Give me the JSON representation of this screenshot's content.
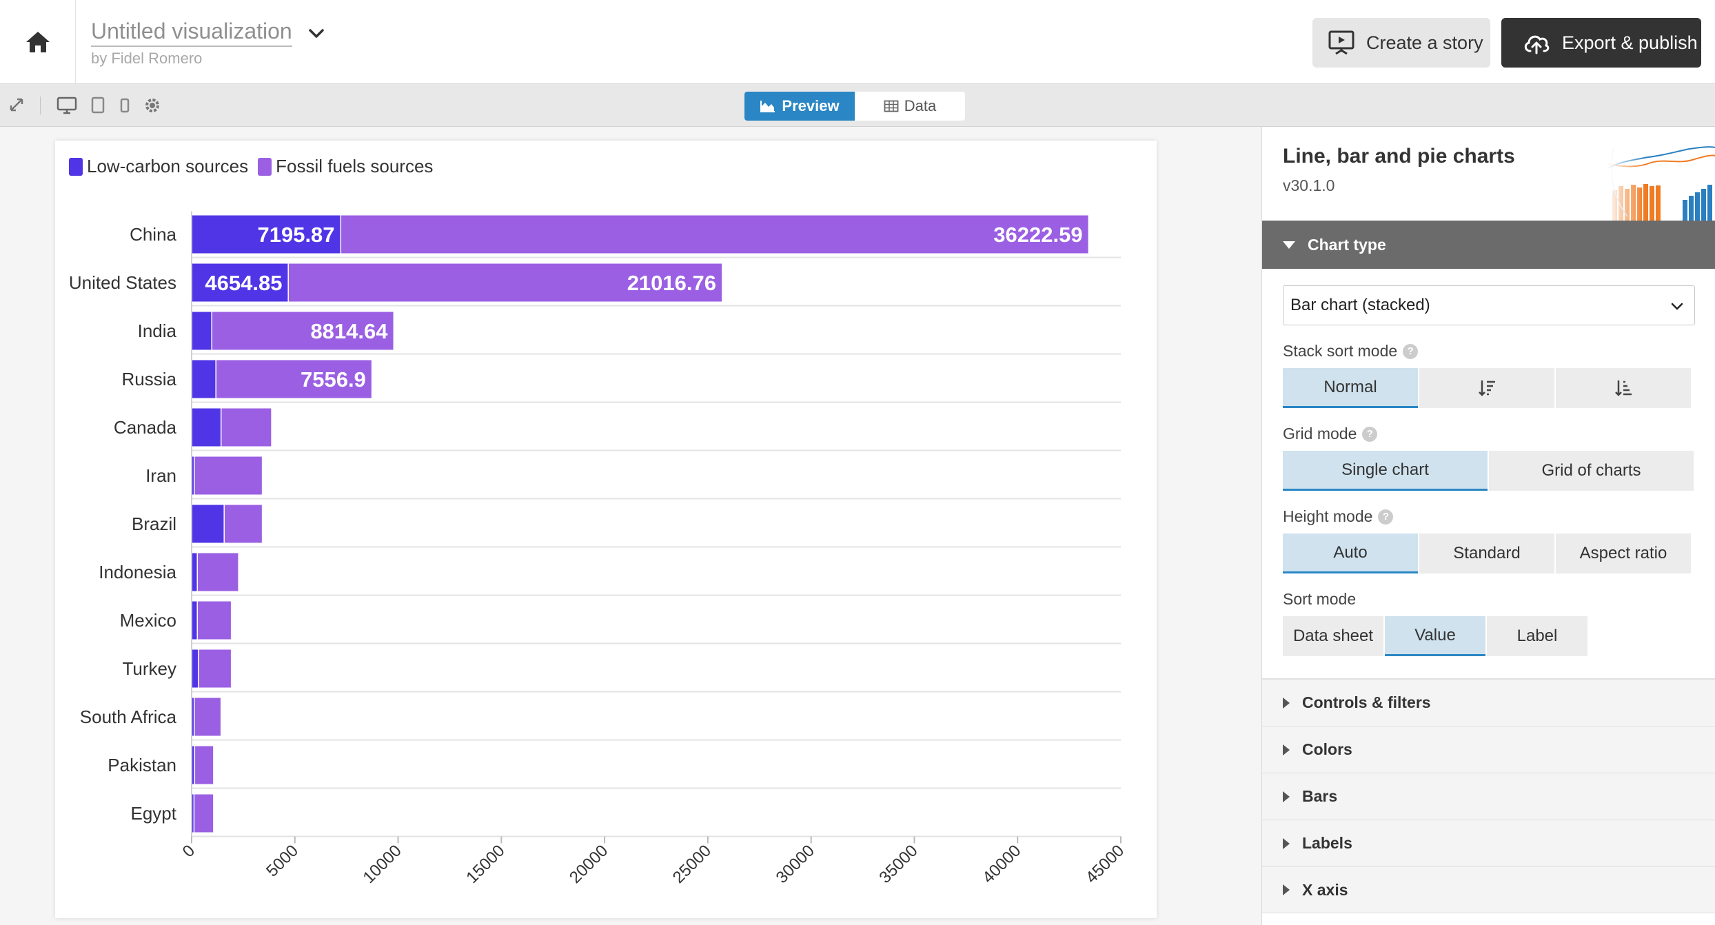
{
  "header": {
    "title": "Untitled visualization",
    "author": "by Fidel Romero",
    "story_label": "Create a story",
    "export_label": "Export & publish"
  },
  "toolbar": {
    "preview_label": "Preview",
    "data_label": "Data"
  },
  "panel": {
    "template_title": "Line, bar and pie charts",
    "template_version": "v30.1.0",
    "chart_type_section": "Chart type",
    "chart_type_value": "Bar chart (stacked)",
    "stack_sort_label": "Stack sort mode",
    "stack_sort_normal": "Normal",
    "grid_mode_label": "Grid mode",
    "grid_single": "Single chart",
    "grid_charts": "Grid of charts",
    "height_mode_label": "Height mode",
    "height_auto": "Auto",
    "height_standard": "Standard",
    "height_aspect": "Aspect ratio",
    "sort_mode_label": "Sort mode",
    "sort_datasheet": "Data sheet",
    "sort_value": "Value",
    "sort_label": "Label",
    "help_glyph": "?",
    "sections": [
      "Controls & filters",
      "Colors",
      "Bars",
      "Labels",
      "X axis"
    ]
  },
  "chart_data": {
    "type": "bar",
    "orientation": "horizontal",
    "stacked": true,
    "title": "",
    "xlabel": "",
    "ylabel": "",
    "categories": [
      "China",
      "United States",
      "India",
      "Russia",
      "Canada",
      "Iran",
      "Brazil",
      "Indonesia",
      "Mexico",
      "Turkey",
      "South Africa",
      "Pakistan",
      "Egypt"
    ],
    "series": [
      {
        "name": "Low-carbon sources",
        "color": "#4f35e6",
        "values": [
          7195.87,
          4654.85,
          950,
          1150,
          1400,
          100,
          1550,
          250,
          250,
          300,
          100,
          120,
          90
        ]
      },
      {
        "name": "Fossil fuels sources",
        "color": "#9b5fe3",
        "values": [
          36222.59,
          21016.76,
          8814.64,
          7556.9,
          2450,
          3300,
          1850,
          2000,
          1650,
          1600,
          1300,
          920,
          950
        ]
      }
    ],
    "value_labels": [
      [
        "7195.87",
        "36222.59"
      ],
      [
        "4654.85",
        "21016.76"
      ],
      [
        "",
        "8814.64"
      ],
      [
        "",
        "7556.9"
      ],
      [
        "",
        ""
      ],
      [
        "",
        ""
      ],
      [
        "",
        ""
      ],
      [
        "",
        ""
      ],
      [
        "",
        ""
      ],
      [
        "",
        ""
      ],
      [
        "",
        ""
      ],
      [
        "",
        ""
      ],
      [
        "",
        ""
      ]
    ],
    "xlim": [
      0,
      45000
    ],
    "xticks": [
      0,
      5000,
      10000,
      15000,
      20000,
      25000,
      30000,
      35000,
      40000,
      45000
    ],
    "grid": true,
    "legend_position": "top-left"
  }
}
